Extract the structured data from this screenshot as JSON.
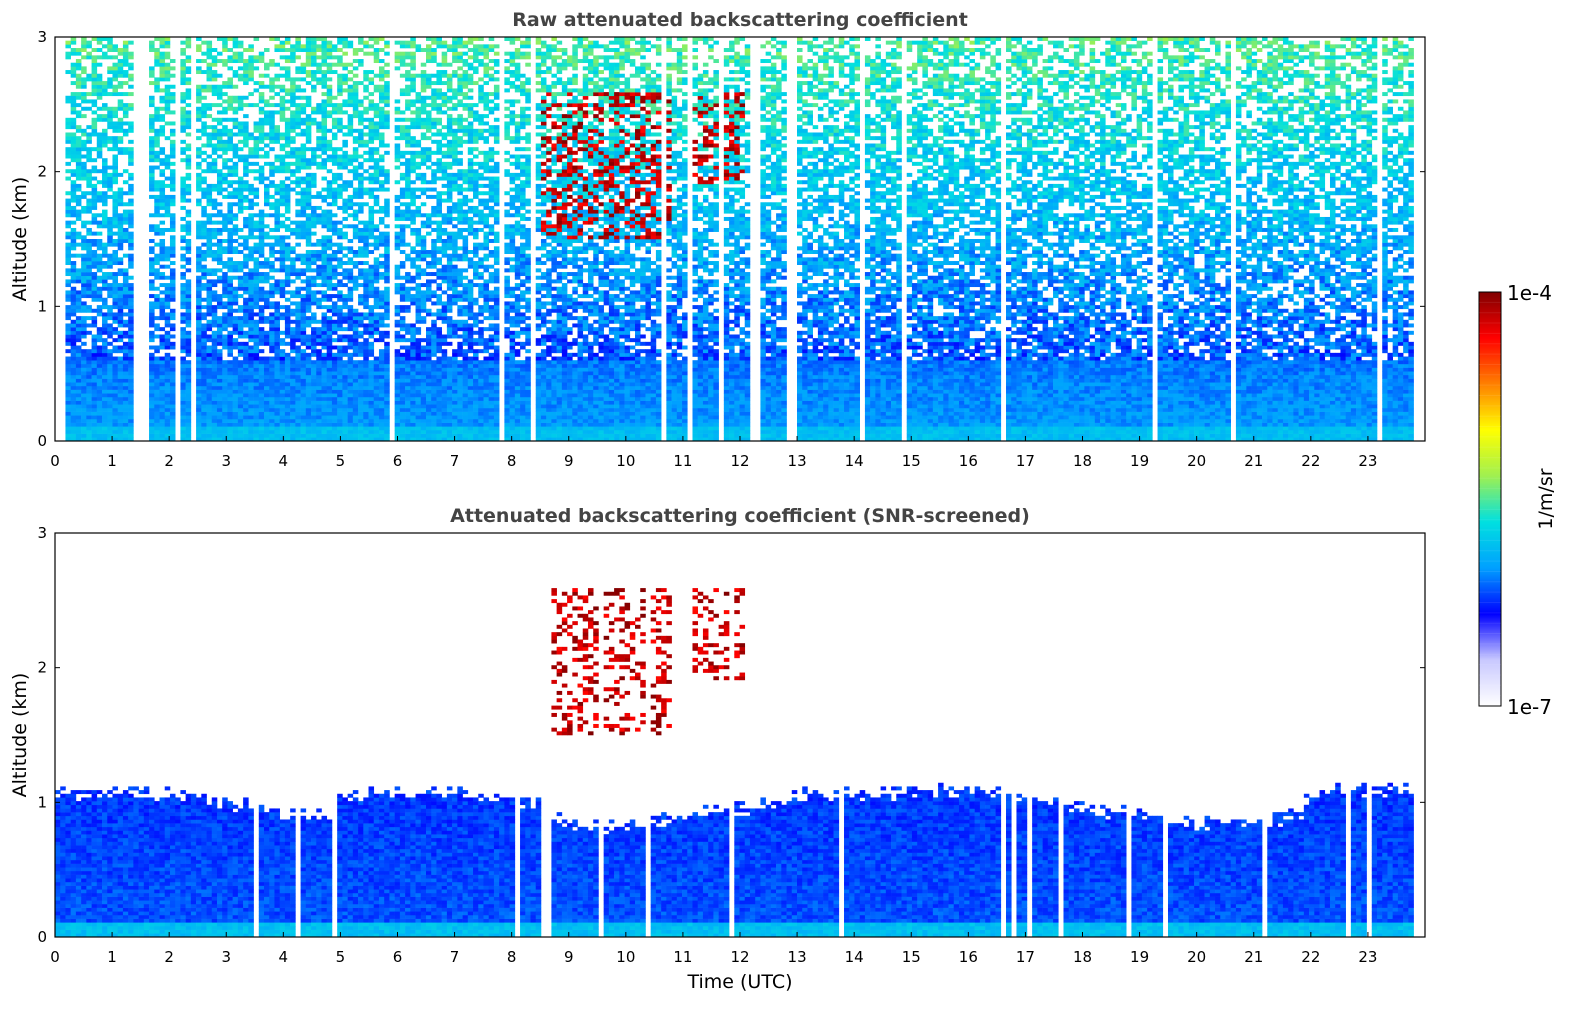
{
  "chart_data": [
    {
      "type": "heatmap",
      "title": "Raw attenuated backscattering coefficient",
      "xlabel": "",
      "ylabel": "Altitude (km)",
      "xlim": [
        0,
        24
      ],
      "ylim": [
        0,
        3
      ],
      "xticks": [
        "0",
        "1",
        "2",
        "3",
        "4",
        "5",
        "6",
        "7",
        "8",
        "9",
        "10",
        "11",
        "12",
        "13",
        "14",
        "15",
        "16",
        "17",
        "18",
        "19",
        "20",
        "21",
        "22",
        "23"
      ],
      "yticks": [
        "0",
        "1",
        "2",
        "3"
      ],
      "data_end_hour": 23.8,
      "gaps_hours": [
        1.42,
        1.5,
        1.55
      ],
      "aerosol_layer_top_km": 0.6,
      "cloud_events": [
        {
          "start_hour": 8.5,
          "end_hour": 10.8,
          "base_km": 1.5,
          "top_km": 2.6
        },
        {
          "start_hour": 11.2,
          "end_hour": 12.1,
          "base_km": 1.9,
          "top_km": 2.6
        }
      ]
    },
    {
      "type": "heatmap",
      "title": "Attenuated backscattering coefficient (SNR-screened)",
      "xlabel": "Time (UTC)",
      "ylabel": "Altitude (km)",
      "xlim": [
        0,
        24
      ],
      "ylim": [
        0,
        3
      ],
      "xticks": [
        "0",
        "1",
        "2",
        "3",
        "4",
        "5",
        "6",
        "7",
        "8",
        "9",
        "10",
        "11",
        "12",
        "13",
        "14",
        "15",
        "16",
        "17",
        "18",
        "19",
        "20",
        "21",
        "22",
        "23"
      ],
      "yticks": [
        "0",
        "1",
        "2",
        "3"
      ],
      "data_end_hour": 23.8,
      "boundary_layer_top_km": [
        [
          0,
          1.08
        ],
        [
          2,
          1.05
        ],
        [
          3,
          1.0
        ],
        [
          4,
          0.92
        ],
        [
          4.8,
          0.9
        ],
        [
          5,
          1.05
        ],
        [
          7,
          1.08
        ],
        [
          8.5,
          1.0
        ],
        [
          9,
          0.85
        ],
        [
          10,
          0.82
        ],
        [
          11,
          0.9
        ],
        [
          12,
          0.95
        ],
        [
          13,
          1.05
        ],
        [
          16,
          1.08
        ],
        [
          17,
          1.05
        ],
        [
          18,
          0.95
        ],
        [
          19,
          0.9
        ],
        [
          20,
          0.85
        ],
        [
          21,
          0.85
        ],
        [
          21.8,
          0.9
        ],
        [
          22,
          1.08
        ],
        [
          23.8,
          1.1
        ]
      ],
      "cloud_events": [
        {
          "start_hour": 8.5,
          "end_hour": 10.8,
          "base_km": 1.5,
          "top_km": 2.6
        },
        {
          "start_hour": 11.2,
          "end_hour": 12.1,
          "base_km": 1.9,
          "top_km": 2.6
        }
      ]
    }
  ],
  "colorbar": {
    "label": "1/m/sr",
    "min_label": "1e-7",
    "max_label": "1e-4",
    "colormap": [
      "#ffffff",
      "#c8c8ff",
      "#0000ff",
      "#00a0ff",
      "#00e0e0",
      "#a0f050",
      "#ffff00",
      "#ff8000",
      "#ff0000",
      "#800000"
    ]
  }
}
